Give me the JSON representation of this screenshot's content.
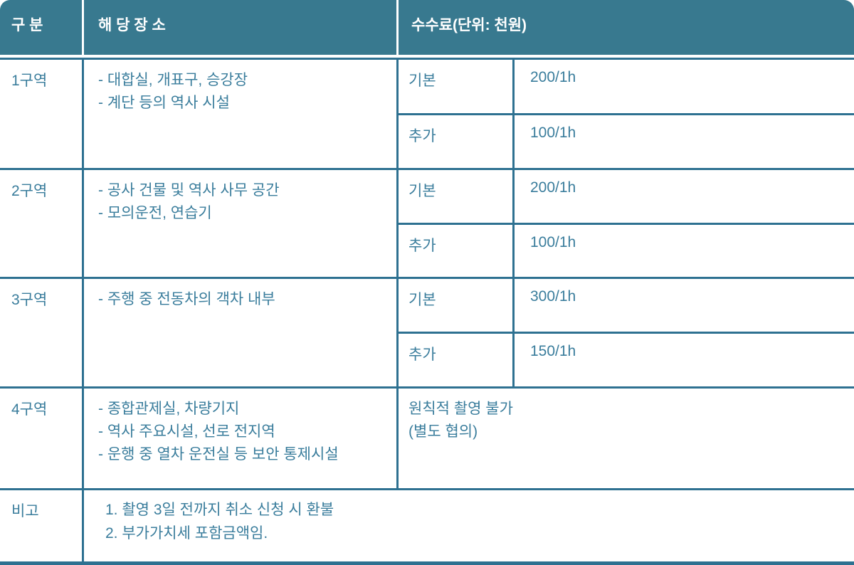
{
  "colors": {
    "header_bg": "#38798f",
    "header_text": "#ffffff",
    "border": "#2e7191",
    "body_text": "#3a7d9c"
  },
  "header": {
    "col_category": "구 분",
    "col_location": "해 당 장 소",
    "col_fee": "수수료(단위: 천원)"
  },
  "zones": [
    {
      "zone": "1구역",
      "locations": [
        "- 대합실, 개표구, 승강장",
        "- 계단 등의 역사 시설"
      ],
      "fees": [
        {
          "type": "기본",
          "amount": "200/1h"
        },
        {
          "type": "추가",
          "amount": "100/1h"
        }
      ]
    },
    {
      "zone": "2구역",
      "locations": [
        "- 공사 건물 및 역사 사무 공간",
        "- 모의운전, 연습기"
      ],
      "fees": [
        {
          "type": "기본",
          "amount": "200/1h"
        },
        {
          "type": "추가",
          "amount": "100/1h"
        }
      ]
    },
    {
      "zone": "3구역",
      "locations": [
        "- 주행 중 전동차의 객차 내부"
      ],
      "fees": [
        {
          "type": "기본",
          "amount": "300/1h"
        },
        {
          "type": "추가",
          "amount": "150/1h"
        }
      ]
    },
    {
      "zone": "4구역",
      "locations": [
        "- 종합관제실, 차량기지",
        "- 역사 주요시설, 선로 전지역",
        "- 운행 중 열차 운전실 등 보안 통제시설"
      ],
      "fee_note": [
        "원칙적 촬영 불가",
        "(별도 협의)"
      ]
    }
  ],
  "remarks": {
    "label": "비고",
    "items": [
      "1. 촬영 3일 전까지 취소 신청 시 환불",
      "2. 부가가치세 포함금액임."
    ]
  }
}
